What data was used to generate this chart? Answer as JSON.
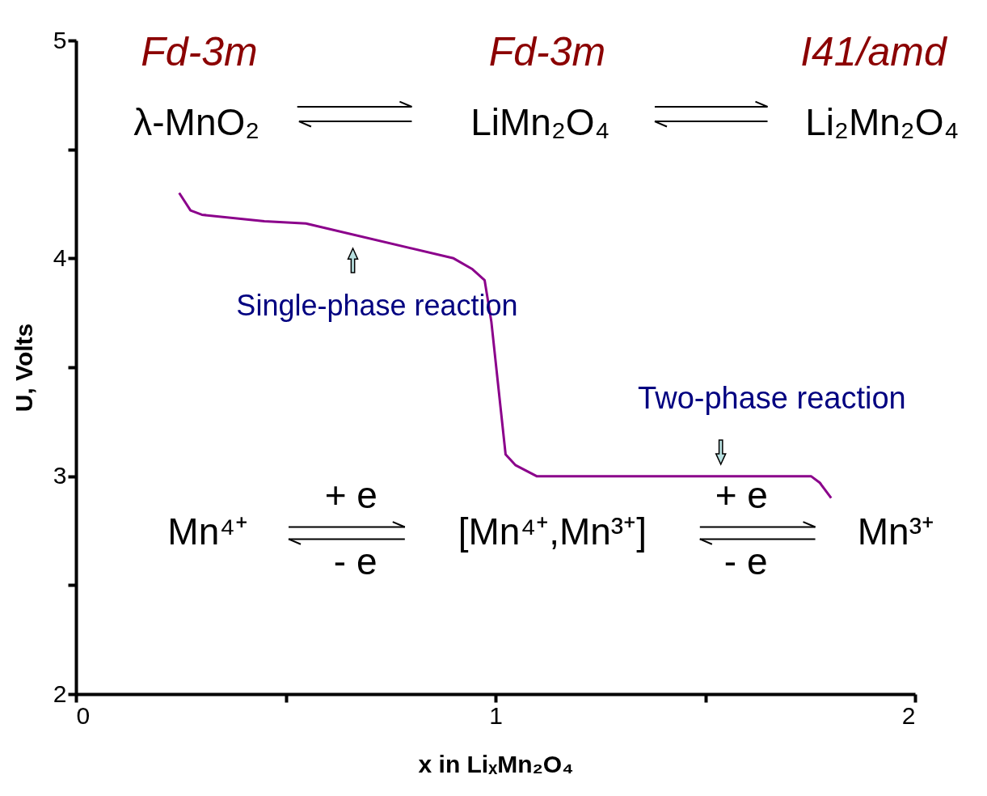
{
  "chart_data": {
    "type": "line",
    "xlabel": "x in LiₓMn₂O₄",
    "ylabel": "U, Volts",
    "x": [
      0.246,
      0.273,
      0.3,
      0.449,
      0.548,
      0.9,
      0.945,
      0.974,
      0.99,
      1.024,
      1.048,
      1.098,
      1.752,
      1.773,
      1.8
    ],
    "series": [
      {
        "color": "#8b008b",
        "values": [
          4.3,
          4.22,
          4.2,
          4.17,
          4.16,
          4.0,
          3.95,
          3.9,
          3.71,
          3.1,
          3.05,
          3.0,
          3.0,
          2.97,
          2.9
        ]
      }
    ],
    "xlim": [
      0,
      2
    ],
    "ylim": [
      2,
      5
    ],
    "xticks": [
      0,
      {
        "value": 0.5,
        "label": null
      },
      1,
      {
        "value": 1.5,
        "label": null
      },
      2
    ],
    "yticks": [
      2,
      {
        "value": 2.5,
        "label": null
      },
      3,
      {
        "value": 3.5,
        "label": null
      },
      4,
      {
        "value": 4.5,
        "label": null
      },
      5
    ],
    "grid": false,
    "marker": "none",
    "line_style": "solid",
    "annotations": [
      "Fd-3m",
      "Fd-3m",
      "I41/amd",
      "λ-MnO₂",
      "LiMn₂O₄",
      "Li₂Mn₂O₄",
      "Mn⁴⁺",
      "[Mn⁴⁺,Mn³⁺]",
      "Mn³⁺",
      "+ e",
      "- e",
      "+ e",
      "- e",
      {
        "text": "Single-phase reaction",
        "x": 0.66,
        "y": 4.1
      },
      {
        "text": "Two-phase reaction",
        "x": 1.537,
        "y": 3.0
      }
    ]
  }
}
